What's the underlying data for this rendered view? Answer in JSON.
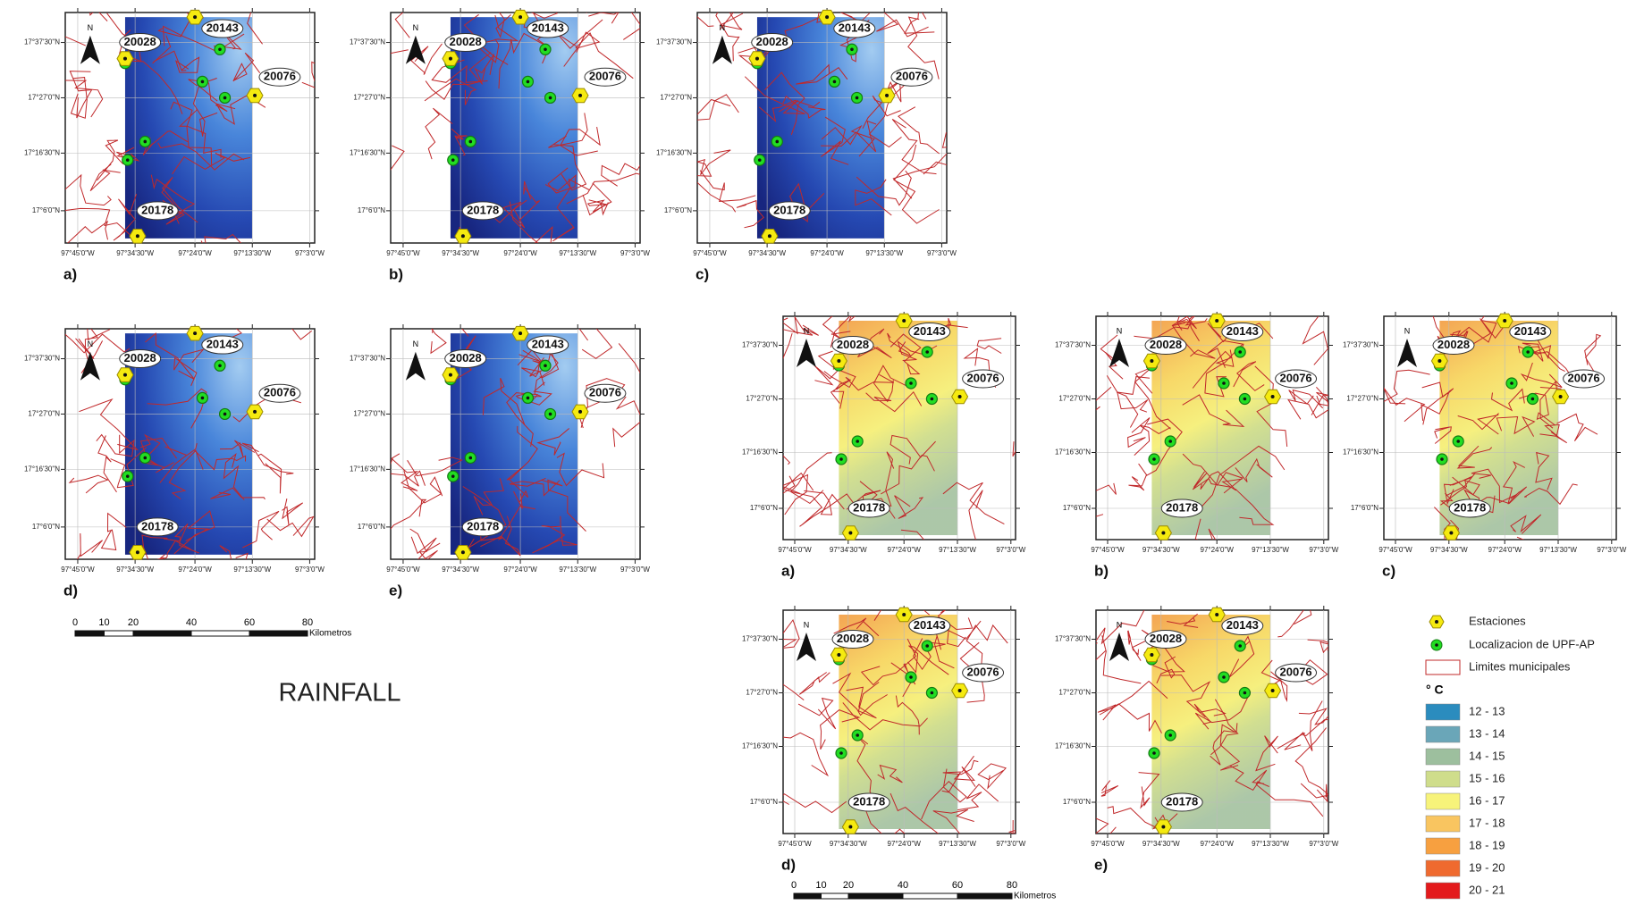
{
  "rainfall": {
    "label": "RAINFALL",
    "panels": [
      "a)",
      "b)",
      "c)",
      "d)",
      "e)"
    ]
  },
  "temperature": {
    "panels": [
      "a)",
      "b)",
      "c)",
      "d)",
      "e)"
    ]
  },
  "stations": [
    "20028",
    "20143",
    "20076",
    "20178"
  ],
  "map_axes": {
    "lat": [
      "17°37'30\"N",
      "17°27'0\"N",
      "17°16'30\"N",
      "17°6'0\"N"
    ],
    "lon": [
      "97°45'0\"W",
      "97°34'30\"W",
      "97°24'0\"W",
      "97°13'30\"W",
      "97°3'0\"W"
    ],
    "north": "N"
  },
  "scale_bar": {
    "ticks": [
      "0",
      "10",
      "20",
      "40",
      "60",
      "80"
    ],
    "unit": "Kilometros"
  },
  "legend": {
    "items": [
      "Estaciones",
      "Localizacion de UPF-AP",
      "Limites municipales"
    ],
    "unit": "° C",
    "classes": [
      {
        "label": "12 - 13",
        "color": "#2b8cbe"
      },
      {
        "label": "13 - 14",
        "color": "#6aa6b8"
      },
      {
        "label": "14 - 15",
        "color": "#9dbf9e"
      },
      {
        "label": "15 - 16",
        "color": "#cfdd8b"
      },
      {
        "label": "16 - 17",
        "color": "#f7f37a"
      },
      {
        "label": "17 - 18",
        "color": "#f9c560"
      },
      {
        "label": "18 - 19",
        "color": "#f7a040"
      },
      {
        "label": "19 - 20",
        "color": "#ef6a2f"
      },
      {
        "label": "20 - 21",
        "color": "#e31a1c"
      }
    ]
  }
}
